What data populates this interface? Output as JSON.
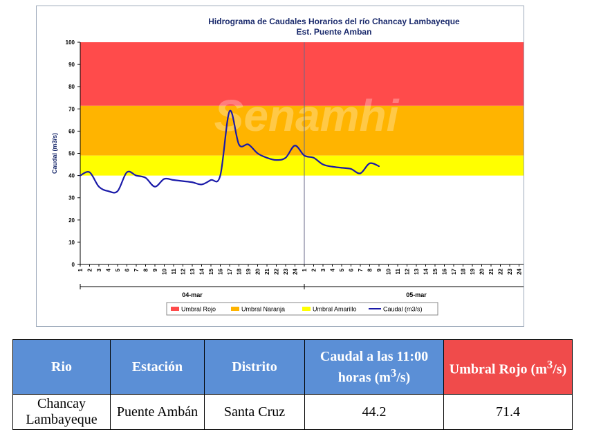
{
  "chart_data": {
    "type": "line",
    "title": "Hidrograma de Caudales Horarios del río Chancay Lambayeque",
    "subtitle": "Est. Puente Amban",
    "watermark": "Senamhi",
    "ylabel": "Caudal  (m3/s)",
    "ylim": [
      0,
      100
    ],
    "yticks": [
      "0",
      "10",
      "20",
      "30",
      "40",
      "50",
      "60",
      "70",
      "80",
      "90",
      "100"
    ],
    "hour_ticks": [
      "1",
      "2",
      "3",
      "4",
      "5",
      "6",
      "7",
      "8",
      "9",
      "10",
      "11",
      "12",
      "13",
      "14",
      "15",
      "16",
      "17",
      "18",
      "19",
      "20",
      "21",
      "22",
      "23",
      "24"
    ],
    "days": [
      "04-mar",
      "05-mar"
    ],
    "bands": [
      {
        "name": "Umbral Rojo",
        "from": 71.4,
        "to": 100,
        "color": "#ff4b4b"
      },
      {
        "name": "Umbral Naranja",
        "from": 49,
        "to": 71.4,
        "color": "#ffb400"
      },
      {
        "name": "Umbral Amarillo",
        "from": 40,
        "to": 49,
        "color": "#ffff00"
      }
    ],
    "legend": [
      "Umbral Rojo",
      "Umbral Naranja",
      "Umbral Amarillo",
      "Caudal (m3/s)"
    ],
    "series": [
      {
        "name": "Caudal (m3/s)",
        "color": "#1a1aa8",
        "values": [
          40,
          41.5,
          35,
          33,
          33,
          41.5,
          40,
          39,
          35,
          38.5,
          38,
          37.5,
          37,
          36,
          38,
          40,
          69,
          54,
          54,
          50,
          48,
          47,
          48,
          53.5,
          49,
          48,
          45,
          44,
          43.5,
          43,
          41,
          45.5,
          44.2
        ]
      }
    ]
  },
  "table": {
    "headers": {
      "rio": "Rio",
      "estacion": "Estación",
      "distrito": "Distrito",
      "caudal_main": "Caudal a las 11:00 horas (m",
      "caudal_sup": "3",
      "caudal_end": "/s)",
      "umbral_main": "Umbral Rojo (m",
      "umbral_sup": "3",
      "umbral_end": "/s)"
    },
    "row": {
      "rio": "Chancay Lambayeque",
      "estacion": "Puente Ambán",
      "distrito": "Santa Cruz",
      "caudal": "44.2",
      "umbral": "71.4"
    }
  }
}
